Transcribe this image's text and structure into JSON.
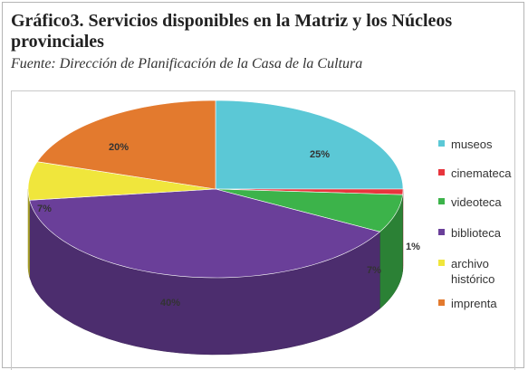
{
  "header": {
    "title": "Gráfico3. Servicios disponibles en la Matriz y los Núcleos provinciales",
    "source": "Fuente: Dirección de Planificación de la Casa de la Cultura"
  },
  "chart_data": {
    "type": "pie",
    "categories": [
      "museos",
      "cinemateca",
      "videoteca",
      "biblioteca",
      "archivo histórico",
      "imprenta"
    ],
    "values": [
      25,
      1,
      7,
      40,
      7,
      20
    ],
    "value_labels": [
      "25%",
      "1%",
      "7%",
      "40%",
      "7%",
      "20%"
    ],
    "colors": [
      "#5bc8d6",
      "#e8353d",
      "#3cb34a",
      "#6a3f99",
      "#f0e63c",
      "#e37a2e"
    ],
    "legend": "right"
  }
}
